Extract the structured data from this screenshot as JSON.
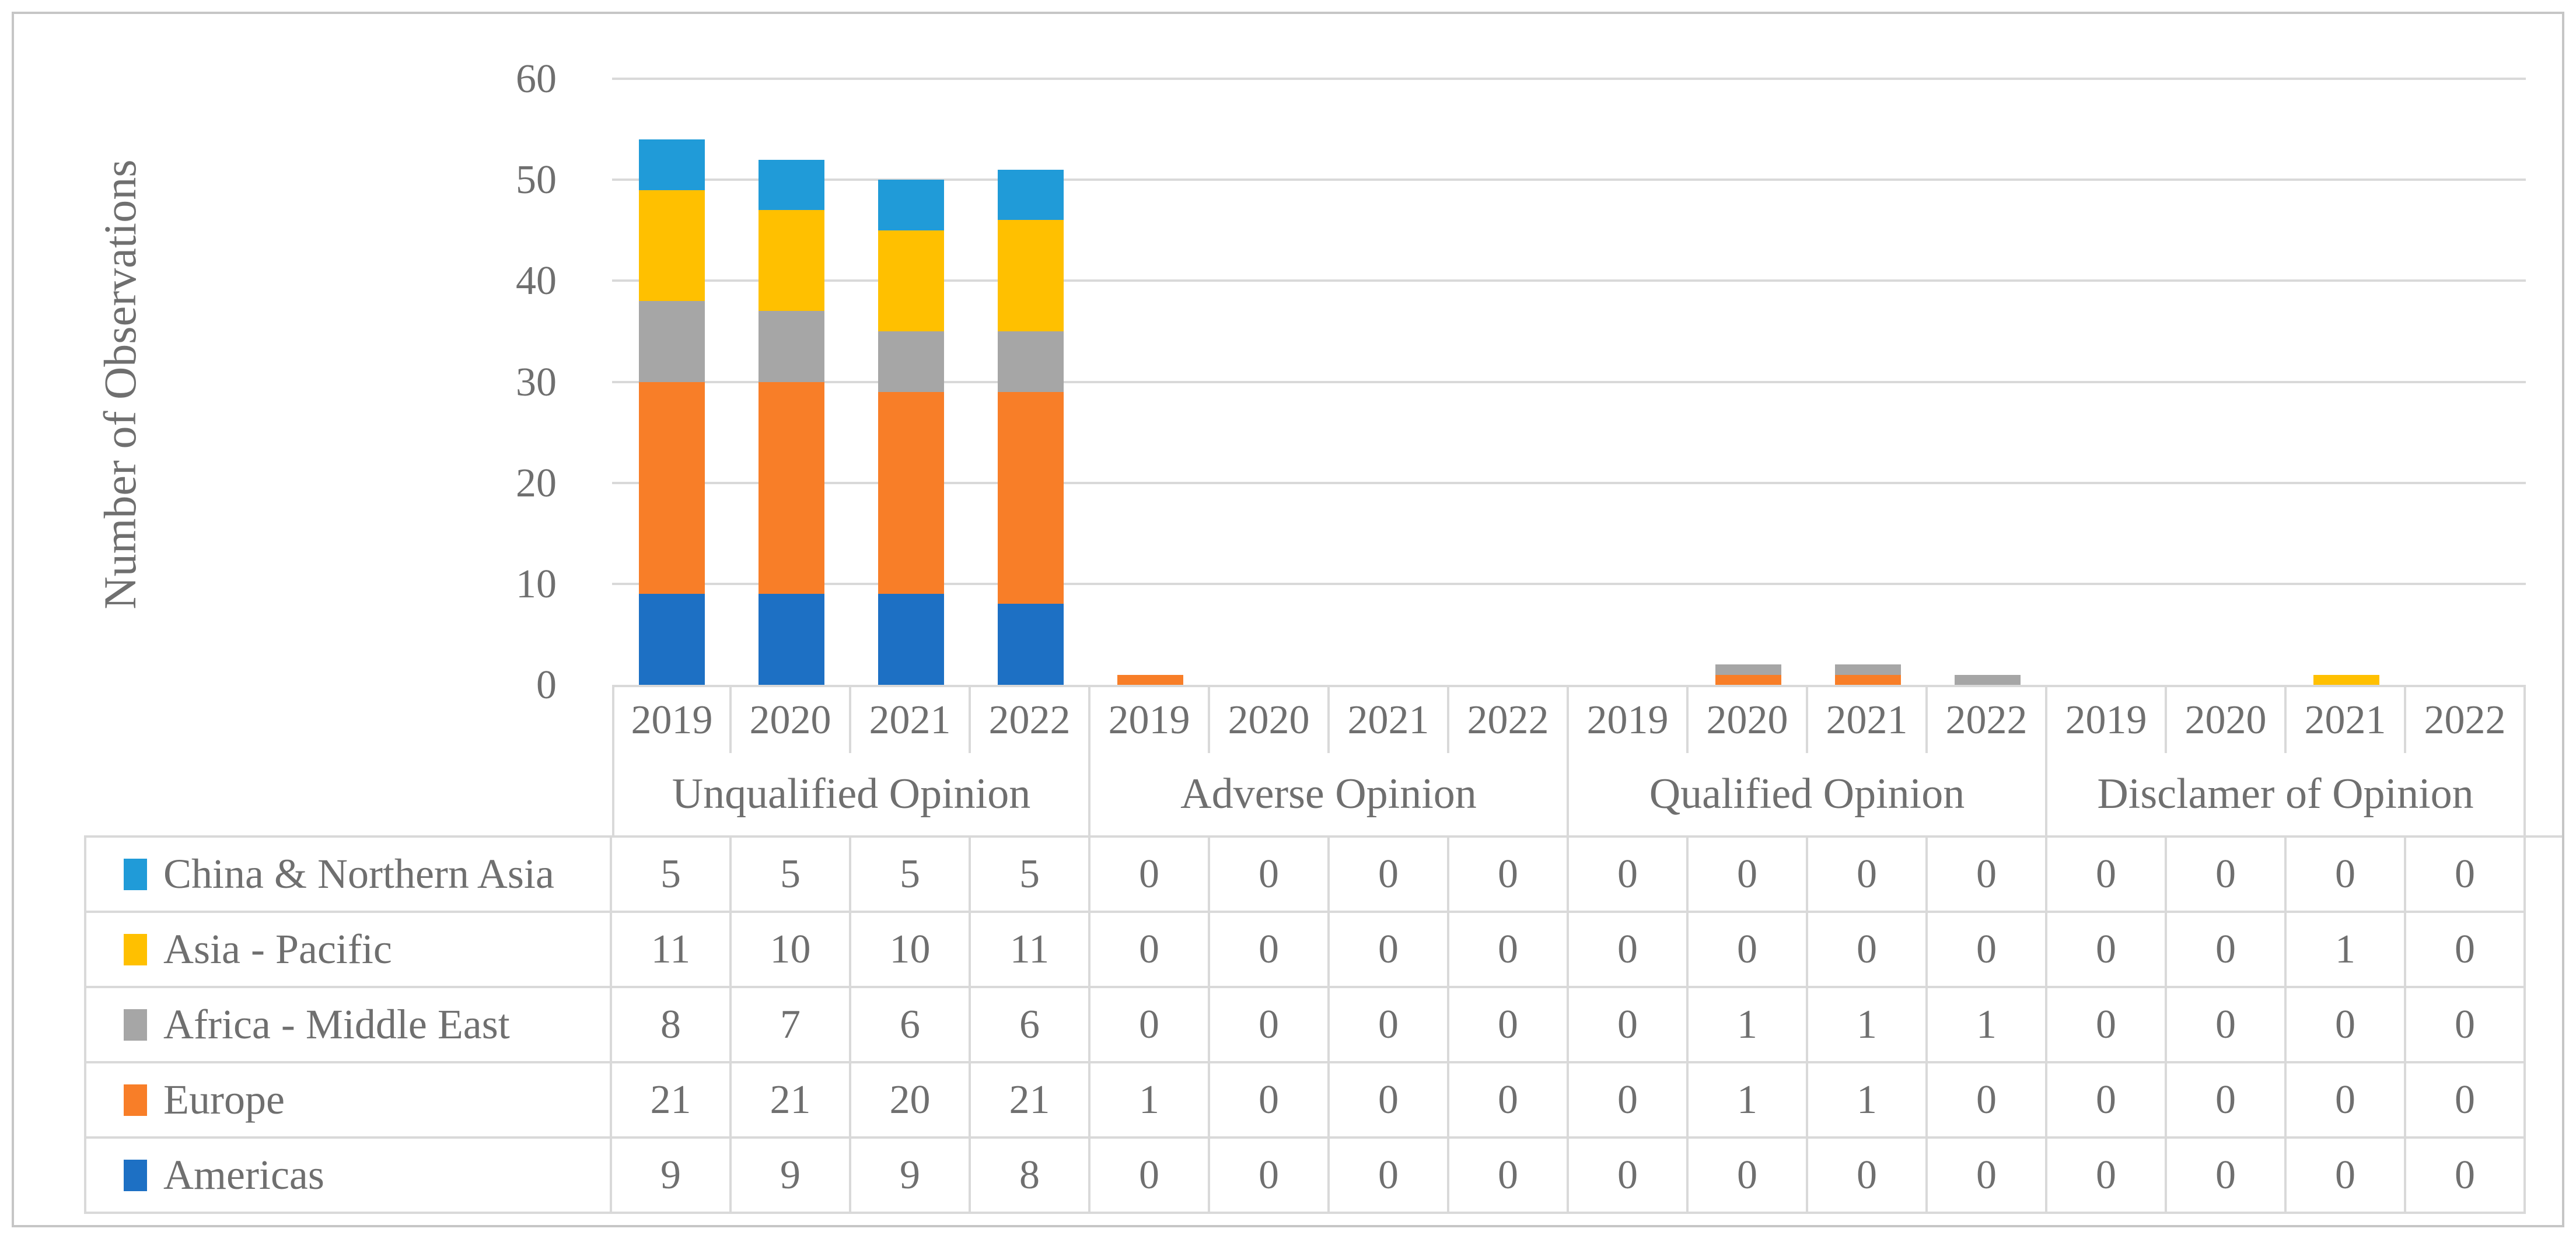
{
  "figure": {
    "y_axis_title": "Number of Observations",
    "border_color": "#C6C6C6",
    "gridline_color": "#D9D9D9",
    "text_color": "#6F6F6F"
  },
  "chart_data": {
    "type": "bar",
    "stacked": true,
    "title": "",
    "ylabel": "Number of Observations",
    "xlabel": "",
    "ylim": [
      0,
      60
    ],
    "y_ticks": [
      0,
      10,
      20,
      30,
      40,
      50,
      60
    ],
    "grid": true,
    "legend_position": "table-left",
    "years": [
      "2019",
      "2020",
      "2021",
      "2022"
    ],
    "group_labels": [
      "Unqualified Opinion",
      "Adverse Opinion",
      "Qualified Opinion",
      "Disclamer of Opinion"
    ],
    "categories": [
      "Unqualified Opinion 2019",
      "Unqualified Opinion 2020",
      "Unqualified Opinion 2021",
      "Unqualified Opinion 2022",
      "Adverse Opinion 2019",
      "Adverse Opinion 2020",
      "Adverse Opinion 2021",
      "Adverse Opinion 2022",
      "Qualified Opinion 2019",
      "Qualified Opinion 2020",
      "Qualified Opinion 2021",
      "Qualified Opinion 2022",
      "Disclamer of Opinion 2019",
      "Disclamer of Opinion 2020",
      "Disclamer of Opinion 2021",
      "Disclamer of Opinion 2022"
    ],
    "series": [
      {
        "name": "China & Northern Asia",
        "color": "#209BD8",
        "values": [
          5,
          5,
          5,
          5,
          0,
          0,
          0,
          0,
          0,
          0,
          0,
          0,
          0,
          0,
          0,
          0
        ]
      },
      {
        "name": "Asia - Pacific",
        "color": "#FFC000",
        "values": [
          11,
          10,
          10,
          11,
          0,
          0,
          0,
          0,
          0,
          0,
          0,
          0,
          0,
          0,
          1,
          0
        ]
      },
      {
        "name": "Africa - Middle East",
        "color": "#A6A6A6",
        "values": [
          8,
          7,
          6,
          6,
          0,
          0,
          0,
          0,
          0,
          1,
          1,
          1,
          0,
          0,
          0,
          0
        ]
      },
      {
        "name": "Europe",
        "color": "#F87E28",
        "values": [
          21,
          21,
          20,
          21,
          1,
          0,
          0,
          0,
          0,
          1,
          1,
          0,
          0,
          0,
          0,
          0
        ]
      },
      {
        "name": "Americas",
        "color": "#1D70C4",
        "values": [
          9,
          9,
          9,
          8,
          0,
          0,
          0,
          0,
          0,
          0,
          0,
          0,
          0,
          0,
          0,
          0
        ]
      }
    ],
    "stack_order_bottom_to_top": [
      "Americas",
      "Europe",
      "Africa - Middle East",
      "Asia - Pacific",
      "China & Northern Asia"
    ]
  }
}
